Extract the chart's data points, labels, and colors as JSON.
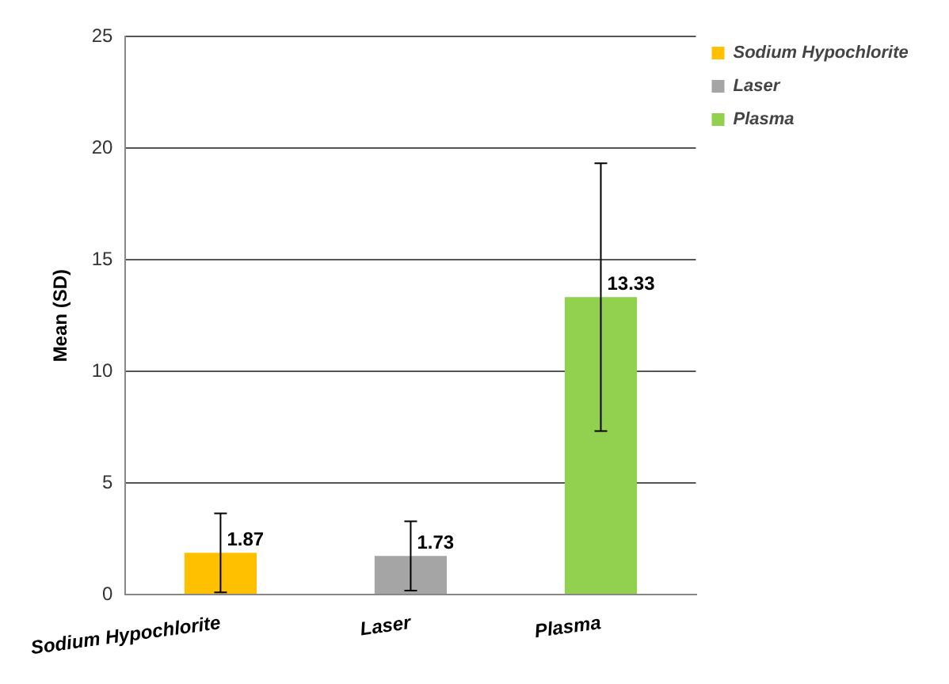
{
  "chart_data": {
    "type": "bar",
    "ylabel": "Mean (SD)",
    "categories": [
      "Sodium Hypochlorite",
      "Laser",
      "Plasma"
    ],
    "series": [
      {
        "name": "Sodium Hypochlorite",
        "color": "#ffc000",
        "values": [
          1.87,
          null,
          null
        ],
        "errors": [
          1.77,
          null,
          null
        ]
      },
      {
        "name": "Laser",
        "color": "#a5a5a5",
        "values": [
          null,
          1.73,
          null
        ],
        "errors": [
          null,
          1.55,
          null
        ]
      },
      {
        "name": "Plasma",
        "color": "#92d050",
        "values": [
          null,
          null,
          13.33
        ],
        "errors": [
          null,
          null,
          6.0
        ]
      }
    ],
    "ylim": [
      0,
      25
    ],
    "yticks": [
      0,
      5,
      10,
      15,
      20,
      25
    ],
    "grid": "y",
    "legend": "right",
    "data_labels": true
  }
}
